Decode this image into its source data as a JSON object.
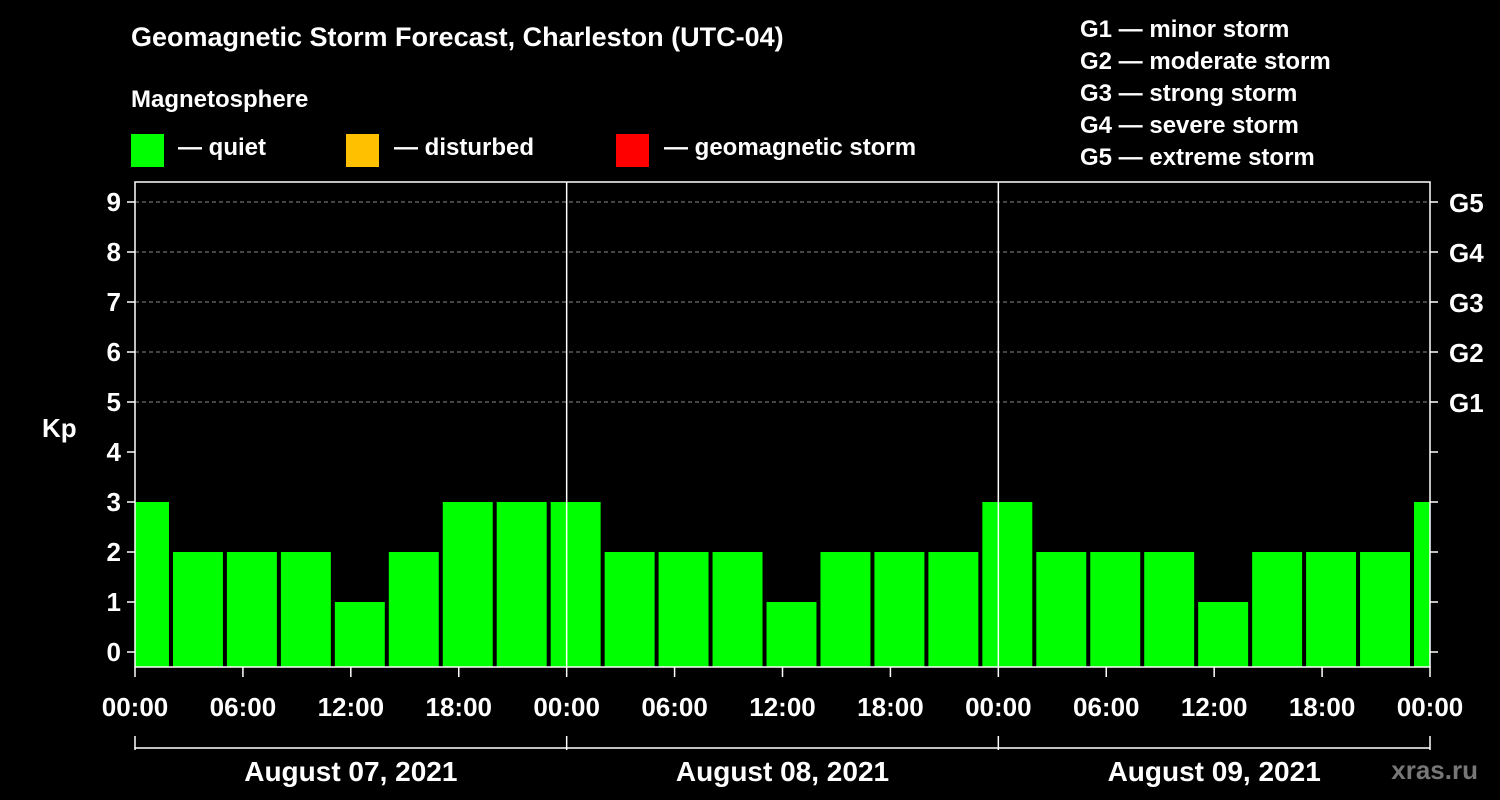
{
  "header": {
    "title": "Geomagnetic Storm Forecast, Charleston (UTC-04)",
    "magnetosphere_label": "Magnetosphere"
  },
  "legend": {
    "quiet": {
      "label": "— quiet",
      "color": "#00ff00"
    },
    "disturbed": {
      "label": "— disturbed",
      "color": "#ffc000"
    },
    "storm": {
      "label": "— geomagnetic storm",
      "color": "#ff0000"
    }
  },
  "g_scale": [
    "G1 — minor storm",
    "G2 — moderate storm",
    "G3 — strong storm",
    "G4 — severe storm",
    "G5 — extreme storm"
  ],
  "watermark": "xras.ru",
  "chart_data": {
    "type": "bar",
    "title": "Geomagnetic Storm Forecast, Charleston (UTC-04)",
    "ylabel": "Kp",
    "ylim": [
      0,
      9
    ],
    "yticks": [
      "0",
      "1",
      "2",
      "3",
      "4",
      "5",
      "6",
      "7",
      "8",
      "9"
    ],
    "right_ticks": [
      {
        "kp": 5,
        "label": "G1"
      },
      {
        "kp": 6,
        "label": "G2"
      },
      {
        "kp": 7,
        "label": "G3"
      },
      {
        "kp": 8,
        "label": "G4"
      },
      {
        "kp": 9,
        "label": "G5"
      }
    ],
    "xtick_labels": [
      "00:00",
      "06:00",
      "12:00",
      "18:00",
      "00:00",
      "06:00",
      "12:00",
      "18:00",
      "00:00",
      "06:00",
      "12:00",
      "18:00",
      "00:00"
    ],
    "days": [
      "August 07, 2021",
      "August 08, 2021",
      "August 09, 2021"
    ],
    "bar_start_hours": [
      -1,
      2,
      5,
      8,
      11,
      14,
      17,
      20,
      23,
      26,
      29,
      32,
      35,
      38,
      41,
      44,
      47,
      50,
      53,
      56,
      59,
      62,
      65,
      68,
      71
    ],
    "values": [
      3,
      2,
      2,
      2,
      1,
      2,
      3,
      3,
      3,
      2,
      2,
      2,
      1,
      2,
      2,
      2,
      3,
      2,
      2,
      2,
      1,
      2,
      2,
      2,
      3
    ],
    "x_range_hours": [
      0,
      72
    ],
    "grid": "dashed horizontal at Kp 5-9",
    "bar_color": "#00ff00"
  }
}
